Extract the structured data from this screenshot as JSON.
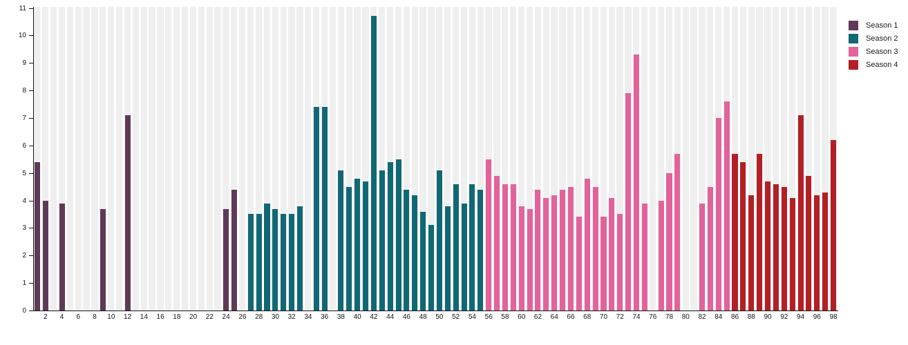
{
  "chart_data": {
    "type": "bar",
    "title": "",
    "xlabel": "",
    "ylabel": "",
    "x_range": [
      1,
      98
    ],
    "ylim": [
      0,
      11
    ],
    "y_ticks": [
      0,
      1,
      2,
      3,
      4,
      5,
      6,
      7,
      8,
      9,
      10,
      11
    ],
    "x_ticks": [
      2,
      4,
      6,
      8,
      10,
      12,
      14,
      16,
      18,
      20,
      22,
      24,
      26,
      28,
      30,
      32,
      34,
      36,
      38,
      40,
      42,
      44,
      46,
      48,
      50,
      52,
      54,
      56,
      58,
      60,
      62,
      64,
      66,
      68,
      70,
      72,
      74,
      76,
      78,
      80,
      82,
      84,
      86,
      88,
      90,
      92,
      94,
      96,
      98
    ],
    "grid": "vertical-band-stripes",
    "stripe_color": "#efefef",
    "axis_color": "#111111",
    "legend_position": "top-right",
    "series": [
      {
        "name": "Season 1",
        "color": "#5e3a56",
        "points": {
          "1": 5.4,
          "2": 4.0,
          "4": 3.9,
          "9": 3.7,
          "12": 7.1,
          "24": 3.7,
          "25": 4.4
        }
      },
      {
        "name": "Season 2",
        "color": "#116875",
        "points": {
          "27": 3.5,
          "28": 3.5,
          "29": 3.9,
          "30": 3.7,
          "31": 3.5,
          "32": 3.5,
          "33": 3.8,
          "35": 7.4,
          "36": 7.4,
          "38": 5.1,
          "39": 4.5,
          "40": 4.8,
          "41": 4.7,
          "42": 10.7,
          "43": 5.1,
          "44": 5.4,
          "45": 5.5,
          "46": 4.4,
          "47": 4.2,
          "48": 3.6,
          "49": 3.1,
          "50": 5.1,
          "51": 3.8,
          "52": 4.6,
          "53": 3.9,
          "54": 4.6,
          "55": 4.4
        }
      },
      {
        "name": "Season 3",
        "color": "#e2639c",
        "points": {
          "56": 5.5,
          "57": 4.9,
          "58": 4.6,
          "59": 4.6,
          "60": 3.8,
          "61": 3.7,
          "62": 4.4,
          "63": 4.1,
          "64": 4.2,
          "65": 4.4,
          "66": 4.5,
          "67": 3.4,
          "68": 4.8,
          "69": 4.5,
          "70": 3.4,
          "71": 4.1,
          "72": 3.5,
          "73": 7.9,
          "74": 9.3,
          "75": 3.9,
          "77": 4.0,
          "78": 5.0,
          "79": 5.7,
          "82": 3.9,
          "83": 4.5,
          "84": 7.0,
          "85": 7.6
        }
      },
      {
        "name": "Season 4",
        "color": "#b22026",
        "points": {
          "86": 5.7,
          "87": 5.4,
          "88": 4.2,
          "89": 5.7,
          "90": 4.7,
          "91": 4.6,
          "92": 4.5,
          "93": 4.1,
          "94": 7.1,
          "95": 4.9,
          "96": 4.2,
          "97": 4.3,
          "98": 6.2
        }
      }
    ]
  }
}
